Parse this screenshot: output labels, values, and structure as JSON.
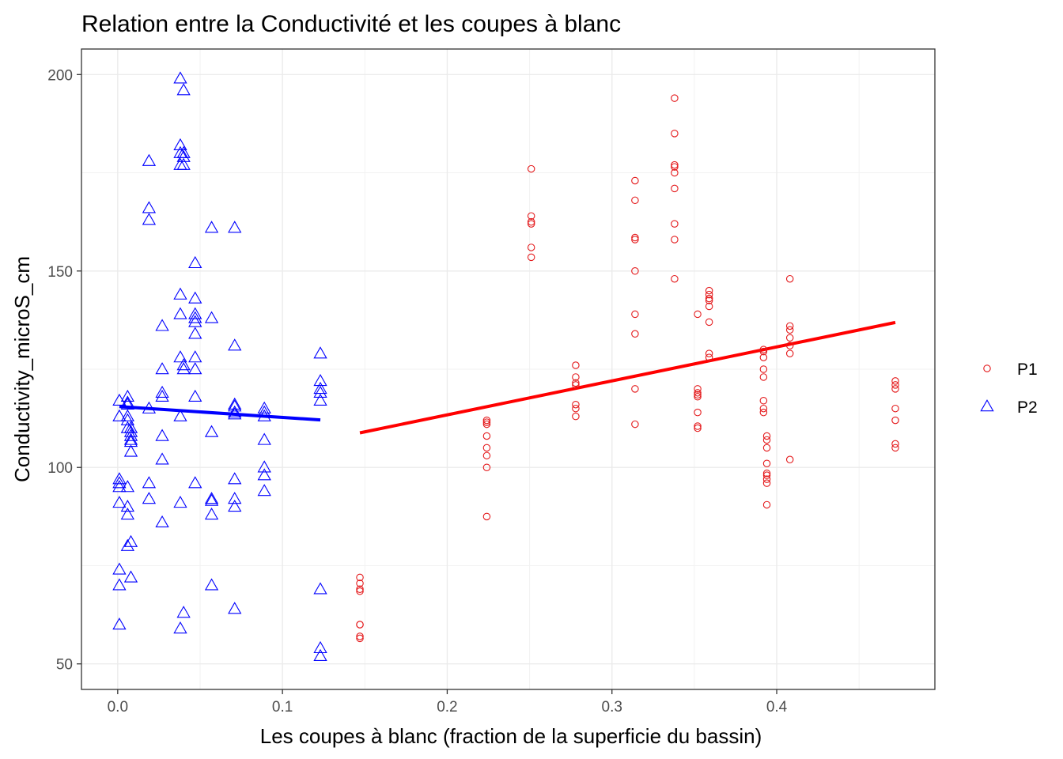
{
  "chart_data": {
    "type": "scatter",
    "title": "Relation entre la Conductivité et les coupes à blanc",
    "xlabel": "Les coupes à blanc (fraction de la superficie du bassin)",
    "ylabel": "Conductivity_microS_cm",
    "xlim": [
      -0.022,
      0.496
    ],
    "ylim": [
      43.5,
      206.5
    ],
    "x_ticks": [
      0.0,
      0.1,
      0.2,
      0.3,
      0.4
    ],
    "x_tick_labels": [
      "0.0",
      "0.1",
      "0.2",
      "0.3",
      "0.4"
    ],
    "y_ticks": [
      50,
      100,
      150,
      200
    ],
    "y_tick_labels": [
      "50",
      "100",
      "150",
      "200"
    ],
    "grid": true,
    "legend_position": "right",
    "series": [
      {
        "name": "P1",
        "color": "#e41a1c",
        "marker": "circle",
        "x": [
          0.147,
          0.147,
          0.147,
          0.147,
          0.147,
          0.147,
          0.147,
          0.147,
          0.224,
          0.224,
          0.224,
          0.224,
          0.224,
          0.224,
          0.224,
          0.224,
          0.251,
          0.251,
          0.251,
          0.251,
          0.251,
          0.251,
          0.278,
          0.278,
          0.278,
          0.278,
          0.278,
          0.278,
          0.278,
          0.314,
          0.314,
          0.314,
          0.314,
          0.314,
          0.314,
          0.314,
          0.314,
          0.314,
          0.338,
          0.338,
          0.338,
          0.338,
          0.338,
          0.338,
          0.338,
          0.338,
          0.338,
          0.352,
          0.352,
          0.352,
          0.352,
          0.352,
          0.352,
          0.352,
          0.352,
          0.359,
          0.359,
          0.359,
          0.359,
          0.359,
          0.359,
          0.359,
          0.359,
          0.392,
          0.392,
          0.392,
          0.392,
          0.392,
          0.392,
          0.392,
          0.392,
          0.394,
          0.394,
          0.394,
          0.394,
          0.394,
          0.394,
          0.394,
          0.394,
          0.394,
          0.408,
          0.408,
          0.408,
          0.408,
          0.408,
          0.408,
          0.408,
          0.472,
          0.472,
          0.472,
          0.472,
          0.472,
          0.472,
          0.472
        ],
        "y": [
          72,
          70.5,
          69,
          68.5,
          60,
          60,
          57,
          56.5,
          112,
          111,
          108,
          105,
          103,
          100,
          87.5,
          111.5,
          176,
          164,
          162,
          156,
          153.5,
          162.5,
          126,
          123,
          121,
          116,
          115,
          113,
          121.5,
          173,
          168,
          158,
          150,
          139,
          134,
          120,
          111,
          158.5,
          194,
          185,
          177,
          175,
          171,
          162,
          158,
          148,
          176.5,
          139,
          120,
          119,
          118,
          114,
          110.5,
          110,
          118.5,
          145,
          144,
          143,
          141,
          137,
          129,
          128,
          142.5,
          130,
          128,
          125,
          123,
          117,
          115,
          114,
          129.5,
          108,
          107,
          105,
          101,
          98.5,
          97,
          96,
          90.5,
          98,
          148,
          136,
          135,
          133,
          131,
          129,
          102,
          122,
          120,
          115,
          112,
          106,
          105,
          121
        ]
      },
      {
        "name": "P2",
        "color": "#0000ff",
        "marker": "triangle",
        "x": [
          0.001,
          0.001,
          0.001,
          0.001,
          0.001,
          0.001,
          0.001,
          0.001,
          0.001,
          0.006,
          0.006,
          0.006,
          0.006,
          0.006,
          0.006,
          0.006,
          0.006,
          0.006,
          0.006,
          0.008,
          0.008,
          0.008,
          0.008,
          0.008,
          0.008,
          0.008,
          0.008,
          0.019,
          0.019,
          0.019,
          0.019,
          0.019,
          0.019,
          0.027,
          0.027,
          0.027,
          0.027,
          0.027,
          0.027,
          0.027,
          0.038,
          0.038,
          0.038,
          0.038,
          0.038,
          0.038,
          0.038,
          0.038,
          0.038,
          0.038,
          0.04,
          0.04,
          0.04,
          0.04,
          0.04,
          0.04,
          0.04,
          0.047,
          0.047,
          0.047,
          0.047,
          0.047,
          0.047,
          0.047,
          0.047,
          0.047,
          0.047,
          0.057,
          0.057,
          0.057,
          0.057,
          0.057,
          0.057,
          0.057,
          0.071,
          0.071,
          0.071,
          0.071,
          0.071,
          0.071,
          0.071,
          0.071,
          0.071,
          0.071,
          0.089,
          0.089,
          0.089,
          0.089,
          0.089,
          0.089,
          0.089,
          0.123,
          0.123,
          0.123,
          0.123,
          0.123,
          0.123,
          0.123,
          0.123
        ],
        "y": [
          117,
          113,
          97,
          95,
          91,
          74,
          70,
          60,
          96,
          118,
          116,
          113,
          112,
          110,
          95,
          90,
          88,
          80,
          116.5,
          108,
          107,
          104,
          81,
          72,
          109,
          110,
          106.5,
          178,
          166,
          163,
          96,
          92,
          115,
          136,
          125,
          119,
          118,
          108,
          102,
          86,
          199,
          182,
          180,
          177,
          144,
          139,
          128,
          113,
          91,
          59,
          196,
          179,
          177,
          126,
          63,
          125,
          180,
          152,
          143,
          139,
          137,
          134,
          125,
          118,
          96,
          138,
          128,
          161,
          138,
          109,
          92,
          88,
          70,
          91.5,
          161,
          131,
          116,
          114,
          97,
          92,
          90,
          64,
          113.5,
          115.5,
          115,
          114,
          107,
          100,
          98,
          94,
          113,
          129,
          122,
          120,
          119,
          117,
          69,
          54,
          52
        ]
      }
    ],
    "trend_lines": [
      {
        "series": "P2",
        "color": "#0000ff",
        "x": [
          0.001,
          0.123
        ],
        "y": [
          115.5,
          112.1
        ]
      },
      {
        "series": "P1",
        "color": "#ff0000",
        "x": [
          0.147,
          0.472
        ],
        "y": [
          108.8,
          136.9
        ]
      }
    ]
  }
}
